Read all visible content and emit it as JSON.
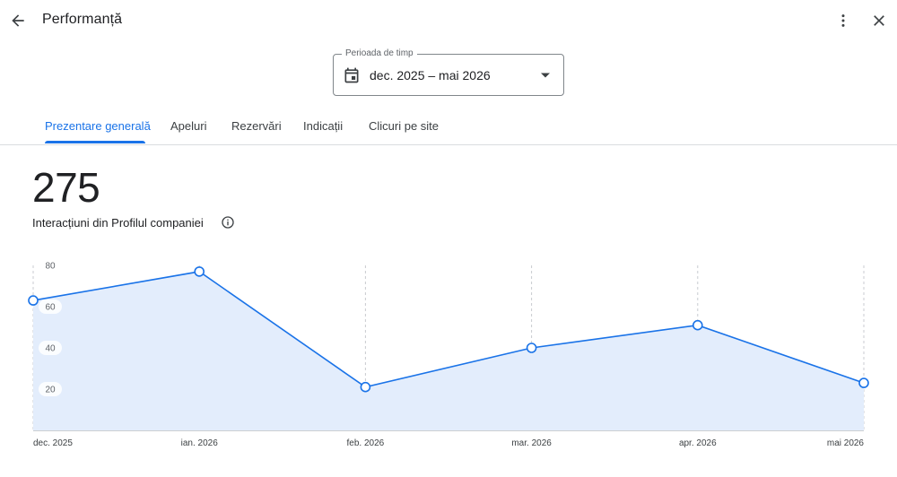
{
  "header": {
    "title": "Performanță",
    "icons": {
      "back": "arrow-back-icon",
      "more": "more-vert-icon",
      "close": "close-icon"
    }
  },
  "period": {
    "label": "Perioada de timp",
    "value": "dec. 2025 – mai 2026"
  },
  "tabs": [
    {
      "label": "Prezentare generală",
      "active": true
    },
    {
      "label": "Apeluri",
      "active": false
    },
    {
      "label": "Rezervări",
      "active": false
    },
    {
      "label": "Indicații",
      "active": false
    },
    {
      "label": "Clicuri pe site",
      "active": false
    }
  ],
  "summary": {
    "total": "275",
    "label": "Interacțiuni din Profilul companiei"
  },
  "colors": {
    "accent": "#1a73e8",
    "area_fill": "#e3edfc",
    "grid": "#c8cbd0"
  },
  "chart_data": {
    "type": "area",
    "categories": [
      "dec. 2025",
      "ian. 2026",
      "feb. 2026",
      "mar. 2026",
      "apr. 2026",
      "mai 2026"
    ],
    "values": [
      63,
      77,
      21,
      40,
      51,
      23
    ],
    "yticks": [
      20,
      40,
      60,
      80
    ],
    "ylim": [
      0,
      80
    ],
    "grid": "vertical-dashed"
  }
}
